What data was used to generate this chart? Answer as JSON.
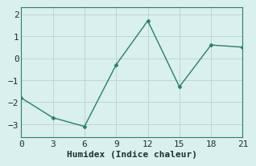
{
  "x": [
    0,
    3,
    6,
    9,
    12,
    15,
    18,
    21
  ],
  "y": [
    -1.8,
    -2.7,
    -3.1,
    -0.3,
    1.7,
    -1.3,
    0.6,
    0.5
  ],
  "xlabel": "Humidex (Indice chaleur)",
  "line_color": "#2a7d6e",
  "marker_color": "#2a7d6e",
  "bg_color": "#daf0ee",
  "grid_color": "#b8d8d4",
  "xlim": [
    0,
    21
  ],
  "ylim": [
    -3.6,
    2.3
  ],
  "xticks": [
    0,
    3,
    6,
    9,
    12,
    15,
    18,
    21
  ],
  "yticks": [
    -3,
    -2,
    -1,
    0,
    1,
    2
  ],
  "xlabel_fontsize": 8,
  "tick_fontsize": 8
}
